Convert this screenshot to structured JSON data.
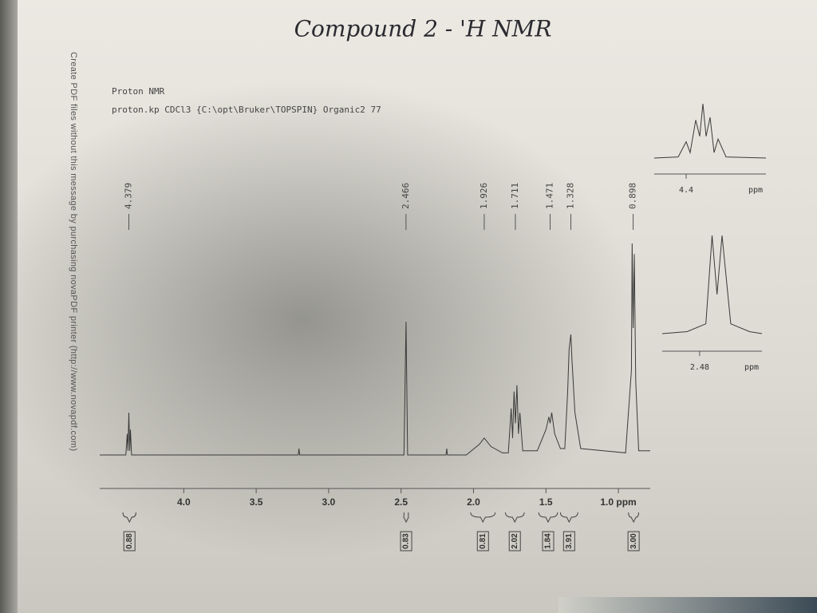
{
  "watermark": "Create PDF files without this message by purchasing novaPDF printer (http://www.novapdf.com)",
  "chart_data": [
    {
      "type": "line",
      "title": "Compound 2 - 'H NMR",
      "subtitle": "Proton NMR",
      "annotations": [
        "proton.kp CDCl3 {C:\\opt\\Bruker\\TOPSPIN} Organic2 77"
      ],
      "color": "#3a3a3a",
      "xlim": [
        4.58,
        0.78
      ],
      "ylim": [
        0,
        100
      ],
      "xticks": [
        {
          "value": 4,
          "label": "4.0"
        },
        {
          "value": 3.5,
          "label": "3.5"
        },
        {
          "value": 3,
          "label": "3.0"
        },
        {
          "value": 2.5,
          "label": "2.5"
        },
        {
          "value": 2,
          "label": "2.0"
        },
        {
          "value": 1.5,
          "label": "1.5"
        },
        {
          "value": 1,
          "label": "1.0 ppm"
        }
      ],
      "x": [
        4.58,
        4.4,
        4.39,
        4.385,
        4.379,
        4.373,
        4.368,
        4.36,
        3.21,
        3.205,
        3.2,
        2.48,
        2.466,
        2.455,
        2.19,
        2.185,
        2.18,
        2.05,
        1.96,
        1.926,
        1.88,
        1.8,
        1.76,
        1.74,
        1.73,
        1.72,
        1.711,
        1.7,
        1.69,
        1.68,
        1.66,
        1.56,
        1.5,
        1.48,
        1.471,
        1.46,
        1.44,
        1.4,
        1.37,
        1.35,
        1.34,
        1.328,
        1.32,
        1.3,
        1.26,
        0.95,
        0.91,
        0.905,
        0.898,
        0.89,
        0.88,
        0.86,
        0.78
      ],
      "values": [
        0,
        0,
        10,
        2,
        20,
        2,
        12,
        0,
        0,
        3,
        0,
        0,
        63,
        0,
        0,
        3,
        0,
        0,
        5,
        8,
        4,
        1,
        1,
        22,
        8,
        30,
        15,
        33,
        10,
        20,
        2,
        2,
        12,
        18,
        15,
        20,
        10,
        3,
        3,
        30,
        50,
        57,
        45,
        20,
        3,
        1,
        40,
        100,
        60,
        95,
        35,
        2,
        2
      ],
      "peak_ticks": [
        4.379,
        2.466,
        1.926,
        1.711,
        1.471,
        1.328,
        0.898
      ],
      "integrals": {
        "values": [
          0.88,
          0.83,
          0.81,
          2.02,
          1.84,
          3.91,
          3.0
        ],
        "value_labels": [
          "0.88",
          "0.83",
          "0.81",
          "2.02",
          "1.84",
          "3.91",
          "3.00"
        ],
        "ranges": [
          [
            4.42,
            4.33
          ],
          [
            2.48,
            2.45
          ],
          [
            2.02,
            1.85
          ],
          [
            1.78,
            1.65
          ],
          [
            1.55,
            1.42
          ],
          [
            1.4,
            1.28
          ],
          [
            0.93,
            0.86
          ]
        ]
      }
    },
    {
      "type": "line",
      "color": "#3a3a3a",
      "xlim": [
        4.44,
        4.3
      ],
      "ylim": [
        0,
        100
      ],
      "xticks": [
        {
          "value": 4.4,
          "label": "4.4"
        }
      ],
      "x_label": "ppm",
      "x": [
        4.44,
        4.41,
        4.4,
        4.395,
        4.388,
        4.383,
        4.379,
        4.375,
        4.37,
        4.365,
        4.36,
        4.35,
        4.3
      ],
      "values": [
        0,
        2,
        30,
        10,
        70,
        40,
        100,
        40,
        75,
        10,
        35,
        2,
        0
      ]
    },
    {
      "type": "line",
      "color": "#3a3a3a",
      "xlim": [
        2.51,
        2.43
      ],
      "ylim": [
        0,
        100
      ],
      "xticks": [
        {
          "value": 2.48,
          "label": "2.48"
        }
      ],
      "x_label": "ppm",
      "x": [
        2.51,
        2.49,
        2.475,
        2.47,
        2.466,
        2.462,
        2.455,
        2.44,
        2.43
      ],
      "values": [
        0,
        2,
        10,
        100,
        40,
        100,
        10,
        2,
        0
      ]
    }
  ]
}
